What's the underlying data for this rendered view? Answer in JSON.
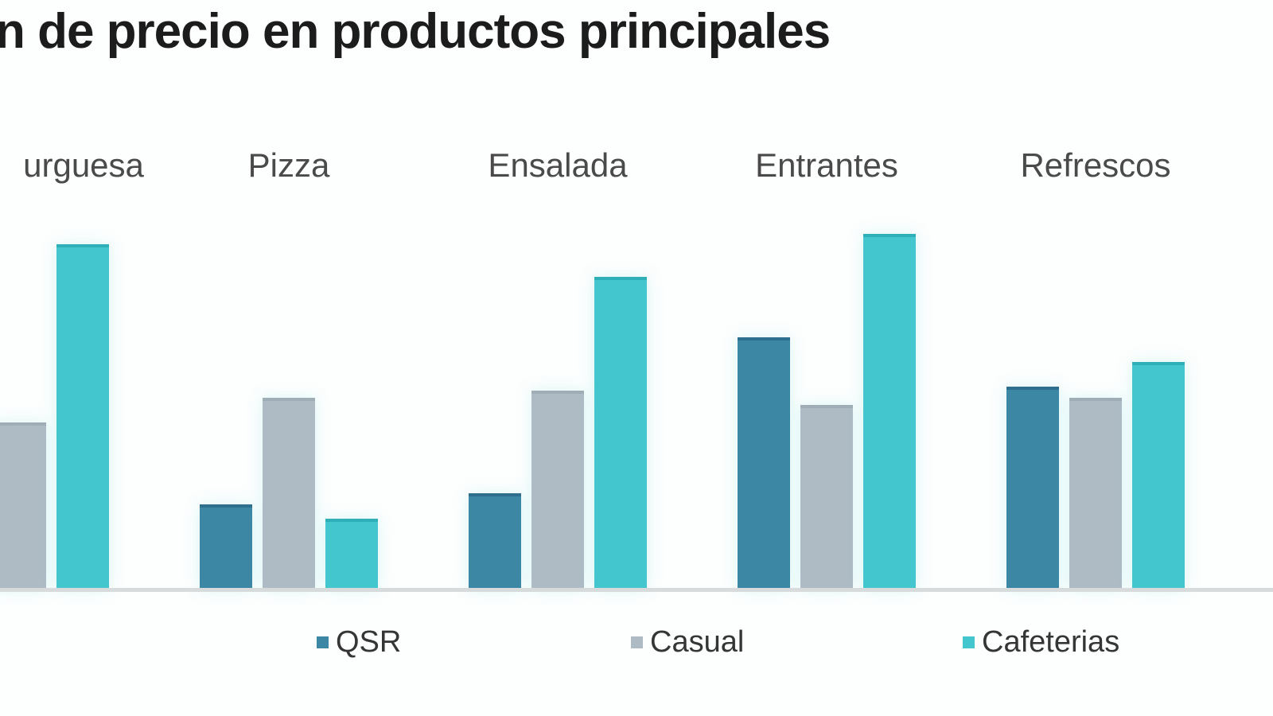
{
  "chart_data": {
    "type": "bar",
    "title": "n de precio en productos principales",
    "categories": [
      "urguesa",
      "Pizza",
      "Ensalada",
      "Entrantes",
      "Refrescos"
    ],
    "series": [
      {
        "name": "QSR",
        "color": "#3c87a4",
        "cap_color": "#2e6f8e",
        "values": [
          null,
          24,
          27,
          71,
          57
        ]
      },
      {
        "name": "Casual",
        "color": "#aebbc4",
        "cap_color": "#9fadb6",
        "values": [
          47,
          54,
          56,
          52,
          54
        ]
      },
      {
        "name": "Cafeterias",
        "color": "#43c6cd",
        "cap_color": "#2fb0b8",
        "values": [
          97,
          20,
          88,
          100,
          64
        ]
      }
    ],
    "ylim": [
      0,
      100
    ],
    "value_scale": "relative units, 100 = tallest visible bar (no numeric axis shown in image)",
    "grid": false,
    "legend_position": "bottom",
    "notes": "chart cropped at left edge: title and first category label partially cut off; QSR bar of first group not visible"
  },
  "colors": {
    "background": "#fdfefe",
    "axis_line": "#d8dbdb",
    "title_text": "#1c1c1c",
    "category_label_text": "#4a4a4a",
    "legend_text": "#353535"
  }
}
